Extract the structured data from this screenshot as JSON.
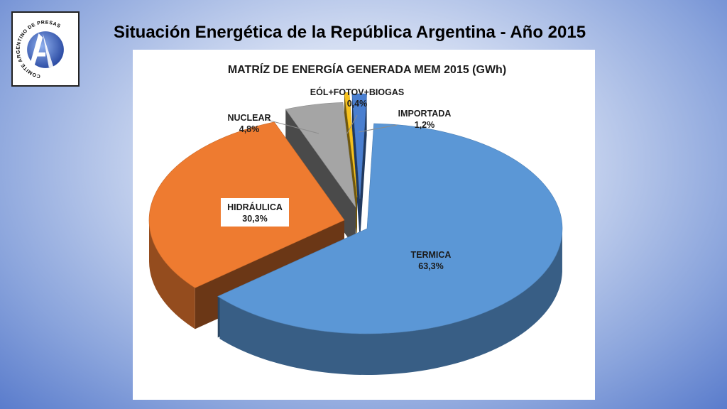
{
  "slide": {
    "title": "Situación Energética de la República Argentina - Año 2015"
  },
  "logo": {
    "name": "comite-argentino-de-presas-logo",
    "text": "COMITE ARGENTINO DE PRESAS"
  },
  "colors": {
    "termica": "#5b97d6",
    "hidraulica": "#ee7b30",
    "nuclear": "#a5a5a5",
    "eol": "#f7c21e",
    "importada": "#4a7fd0"
  },
  "chart_data": {
    "type": "pie",
    "title": "MATRÍZ DE ENERGÍA GENERADA MEM 2015 (GWh)",
    "slices": [
      {
        "label": "TERMICA",
        "value": 63.3,
        "display": "63,3%"
      },
      {
        "label": "HIDRÁULICA",
        "value": 30.3,
        "display": "30,3%"
      },
      {
        "label": "NUCLEAR",
        "value": 4.8,
        "display": "4,8%"
      },
      {
        "label": "EÓL+FOTOV+BIOGAS",
        "value": 0.4,
        "display": "0,4%"
      },
      {
        "label": "IMPORTADA",
        "value": 1.2,
        "display": "1,2%"
      }
    ]
  }
}
